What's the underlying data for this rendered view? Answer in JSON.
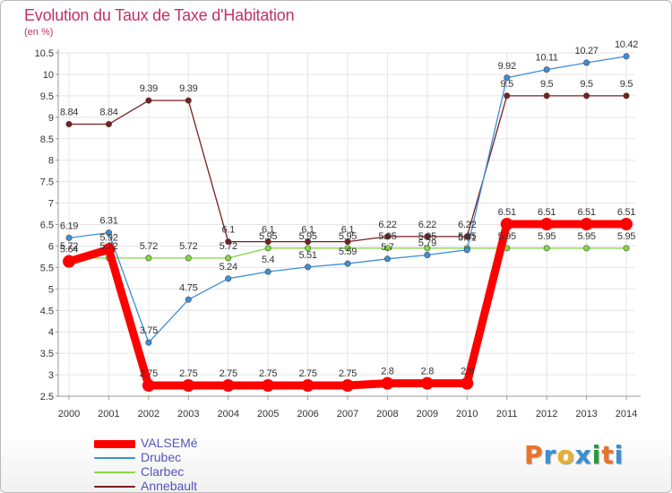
{
  "header": {
    "title": "Evolution du Taux de Taxe d'Habitation",
    "subtitle": "(en %)"
  },
  "logo": {
    "text": "Proxiti",
    "letters": [
      "P",
      "r",
      "o",
      "x",
      "i",
      "t",
      "i"
    ],
    "letter_colors": [
      "#e8732a",
      "#3a8fd1",
      "#e8b02a",
      "#3a8fd1",
      "#2a9a3a",
      "#e8732a",
      "#3a8fd1"
    ]
  },
  "chart_data": {
    "type": "line",
    "title": "Evolution du Taux de Taxe d'Habitation",
    "subtitle": "(en %)",
    "xlabel": "",
    "ylabel": "",
    "x": [
      2000,
      2001,
      2002,
      2003,
      2004,
      2005,
      2006,
      2007,
      2008,
      2009,
      2010,
      2011,
      2012,
      2013,
      2014
    ],
    "ylim": [
      2.5,
      10.5
    ],
    "yticks": [
      2.5,
      3,
      3.5,
      4,
      4.5,
      5,
      5.5,
      6,
      6.5,
      7,
      7.5,
      8,
      8.5,
      9,
      9.5,
      10,
      10.5
    ],
    "grid": true,
    "legend_position": "bottom-left",
    "series": [
      {
        "name": "VALSEMé",
        "color": "#ff0000",
        "values": [
          5.64,
          5.92,
          2.75,
          2.75,
          2.75,
          2.75,
          2.75,
          2.75,
          2.8,
          2.8,
          2.8,
          6.51,
          6.51,
          6.51,
          6.51
        ],
        "labels": [
          "5.64",
          "5.92",
          "2.75",
          "2.75",
          "2.75",
          "2.75",
          "2.75",
          "2.75",
          "2.8",
          "2.8",
          "2.8",
          "6.51",
          "6.51",
          "6.51",
          "6.51"
        ]
      },
      {
        "name": "Drubec",
        "color": "#3d8fd8",
        "values": [
          6.19,
          6.31,
          3.75,
          4.75,
          5.24,
          5.4,
          5.51,
          5.59,
          5.7,
          5.79,
          5.91,
          9.92,
          10.11,
          10.27,
          10.42
        ],
        "labels": [
          "6.19",
          "6.31",
          "3.75",
          "4.75",
          "5.24",
          "5.4",
          "5.51",
          "5.59",
          "5.7",
          "5.79",
          "5.91",
          "9.92",
          "10.11",
          "10.27",
          "10.42"
        ]
      },
      {
        "name": "Clarbec",
        "color": "#84d840",
        "values": [
          5.72,
          5.72,
          5.72,
          5.72,
          5.72,
          5.95,
          5.95,
          5.95,
          5.95,
          5.95,
          5.95,
          5.95,
          5.95,
          5.95,
          5.95
        ],
        "labels": [
          "5.72",
          "5.72",
          "5.72",
          "5.72",
          "5.72",
          "5.95",
          "5.95",
          "5.95",
          "5.95",
          "5.95",
          "5.95",
          "5.95",
          "5.95",
          "5.95",
          "5.95"
        ]
      },
      {
        "name": "Annebault",
        "color": "#7a1f1f",
        "values": [
          8.84,
          8.84,
          9.39,
          9.39,
          6.1,
          6.1,
          6.1,
          6.1,
          6.22,
          6.22,
          6.22,
          9.5,
          9.5,
          9.5,
          9.5
        ],
        "labels": [
          "8.84",
          "8.84",
          "9.39",
          "9.39",
          "6.1",
          "6.1",
          "6.1",
          "6.1",
          "6.22",
          "6.22",
          "6.22",
          "9.5",
          "9.5",
          "9.5",
          "9.5"
        ]
      }
    ]
  }
}
